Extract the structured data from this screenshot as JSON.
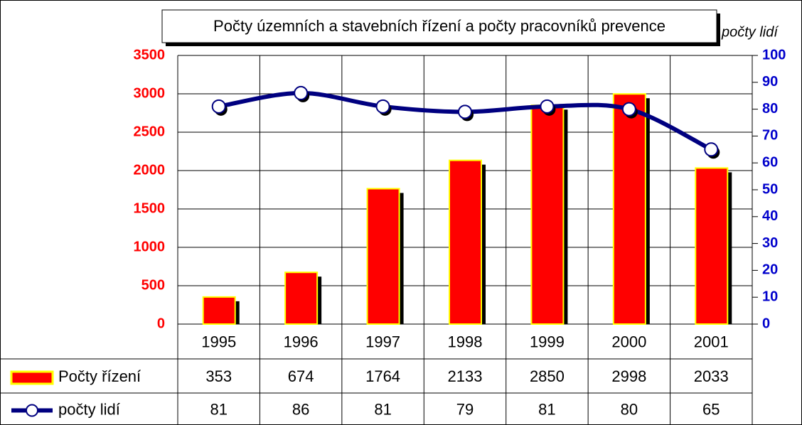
{
  "chart_data": {
    "type": "bar",
    "title": "Počty územních a stavebních řízení a počty pracovníků prevence",
    "y2label": "počty lidí",
    "categories": [
      "1995",
      "1996",
      "1997",
      "1998",
      "1999",
      "2000",
      "2001"
    ],
    "series": [
      {
        "name": "Počty řízení",
        "type": "bar",
        "color": "#ff0000",
        "values": [
          353,
          674,
          1764,
          2133,
          2850,
          2998,
          2033
        ]
      },
      {
        "name": "počty lidí",
        "type": "line",
        "axis": "y2",
        "color": "#000080",
        "values": [
          81,
          86,
          81,
          79,
          81,
          80,
          65
        ]
      }
    ],
    "ylim": [
      0,
      3500
    ],
    "yticks": [
      0,
      500,
      1000,
      1500,
      2000,
      2500,
      3000,
      3500
    ],
    "y2lim": [
      0,
      100
    ],
    "y2ticks": [
      0,
      10,
      20,
      30,
      40,
      50,
      60,
      70,
      80,
      90,
      100
    ],
    "ycolor": "#ff0000",
    "y2color": "#0000cc",
    "grid": true,
    "data_table": true
  }
}
